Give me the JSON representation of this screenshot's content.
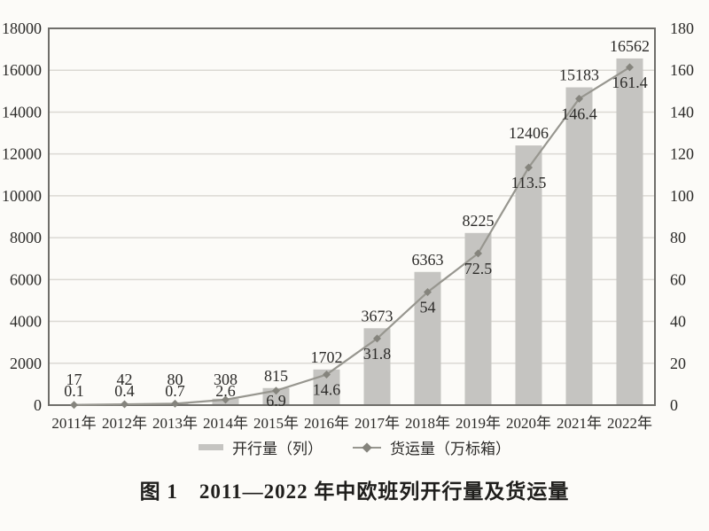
{
  "figure": {
    "caption": "图 1　2011—2022 年中欧班列开行量及货运量"
  },
  "legend": {
    "bar_label": "开行量（列）",
    "line_label": "货运量（万标箱）"
  },
  "chart_data": {
    "type": "bar+line combo",
    "title": "图 1　2011—2022 年中欧班列开行量及货运量",
    "categories": [
      "2011年",
      "2012年",
      "2013年",
      "2014年",
      "2015年",
      "2016年",
      "2017年",
      "2018年",
      "2019年",
      "2020年",
      "2021年",
      "2022年"
    ],
    "series": [
      {
        "name": "开行量（列）",
        "type": "bar",
        "axis": "left",
        "values": [
          17,
          42,
          80,
          308,
          815,
          1702,
          3673,
          6363,
          8225,
          12406,
          15183,
          16562
        ]
      },
      {
        "name": "货运量（万标箱）",
        "type": "line",
        "axis": "right",
        "values": [
          0.1,
          0.4,
          0.7,
          2.6,
          6.9,
          14.6,
          31.8,
          54,
          72.5,
          113.5,
          146.4,
          161.4
        ]
      }
    ],
    "left_axis": {
      "min": 0,
      "max": 18000,
      "step": 2000
    },
    "right_axis": {
      "min": 0,
      "max": 180,
      "step": 20
    },
    "grid": "horizontal gridlines only",
    "legend_position": "bottom",
    "data_labels": "shown for every point",
    "colors": {
      "bar": "#c5c4c1",
      "line": "#97968f",
      "marker": "#85847d",
      "gridline": "#dbd9d4",
      "plot_border": "#6f6e6a",
      "text": "#2b2a28",
      "background": "#fcfbf8"
    }
  }
}
